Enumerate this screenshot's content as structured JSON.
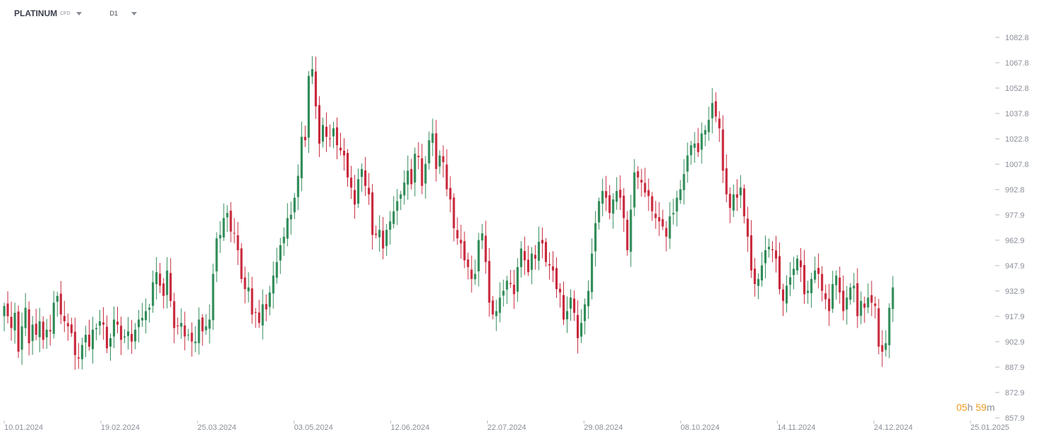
{
  "header": {
    "symbol": "PLATINUM",
    "symbol_sub": "CFD",
    "timeframe": "D1"
  },
  "timer": {
    "hours": "05",
    "h_unit": "h",
    "minutes": "59",
    "m_unit": "m"
  },
  "colors": {
    "up": "#2e8b57",
    "down": "#c8283c",
    "axis_text": "#8a8f98",
    "countdown": "#f29a1c"
  },
  "chart_data": {
    "type": "candlestick",
    "y_ticks": [
      "1082.8",
      "1067.8",
      "1052.8",
      "1037.8",
      "1022.8",
      "1007.8",
      "992.8",
      "977.9",
      "962.9",
      "947.9",
      "932.9",
      "917.9",
      "902.9",
      "887.9",
      "872.9",
      "857.9"
    ],
    "x_ticks": [
      "10.01.2024",
      "19.02.2024",
      "25.03.2024",
      "03.05.2024",
      "12.06.2024",
      "22.07.2024",
      "29.08.2024",
      "08.10.2024",
      "14.11.2024",
      "24.12.2024",
      "25.01.2025"
    ],
    "ylim": [
      857.9,
      1082.8
    ],
    "closes": [
      924,
      918,
      911,
      920,
      897,
      912,
      923,
      902,
      913,
      907,
      915,
      904,
      910,
      909,
      926,
      930,
      919,
      915,
      912,
      908,
      895,
      893,
      901,
      907,
      900,
      910,
      911,
      915,
      913,
      899,
      905,
      916,
      913,
      904,
      906,
      909,
      903,
      910,
      916,
      917,
      921,
      923,
      938,
      944,
      936,
      930,
      945,
      927,
      911,
      912,
      914,
      906,
      907,
      903,
      903,
      916,
      909,
      912,
      916,
      943,
      964,
      966,
      976,
      979,
      968,
      967,
      957,
      940,
      934,
      935,
      919,
      920,
      914,
      925,
      922,
      932,
      942,
      950,
      960,
      965,
      976,
      978,
      988,
      1001,
      1024,
      1022,
      1060,
      1064,
      1042,
      1020,
      1031,
      1024,
      1023,
      1029,
      1019,
      1016,
      1013,
      1000,
      994,
      984,
      999,
      1005,
      995,
      990,
      966,
      966,
      969,
      958,
      969,
      974,
      980,
      986,
      990,
      997,
      1004,
      996,
      1014,
      1012,
      995,
      1008,
      1022,
      1026,
      1005,
      1013,
      1009,
      993,
      987,
      970,
      964,
      961,
      951,
      947,
      940,
      943,
      963,
      967,
      950,
      926,
      919,
      921,
      929,
      933,
      939,
      937,
      931,
      947,
      958,
      951,
      944,
      955,
      952,
      962,
      961,
      950,
      948,
      945,
      934,
      932,
      916,
      921,
      929,
      920,
      905,
      914,
      925,
      933,
      955,
      973,
      986,
      992,
      988,
      979,
      987,
      992,
      988,
      976,
      957,
      981,
      1003,
      1000,
      997,
      991,
      989,
      980,
      976,
      974,
      971,
      965,
      977,
      979,
      988,
      993,
      1002,
      1013,
      1019,
      1020,
      1015,
      1026,
      1028,
      1034,
      1044,
      1036,
      1029,
      1004,
      990,
      982,
      990,
      988,
      994,
      977,
      965,
      945,
      937,
      940,
      948,
      957,
      959,
      957,
      952,
      934,
      927,
      936,
      941,
      946,
      952,
      947,
      931,
      933,
      940,
      945,
      943,
      933,
      928,
      921,
      937,
      942,
      932,
      921,
      929,
      935,
      936,
      918,
      927,
      923,
      929,
      926,
      924,
      900,
      897,
      902,
      923,
      935
    ]
  }
}
